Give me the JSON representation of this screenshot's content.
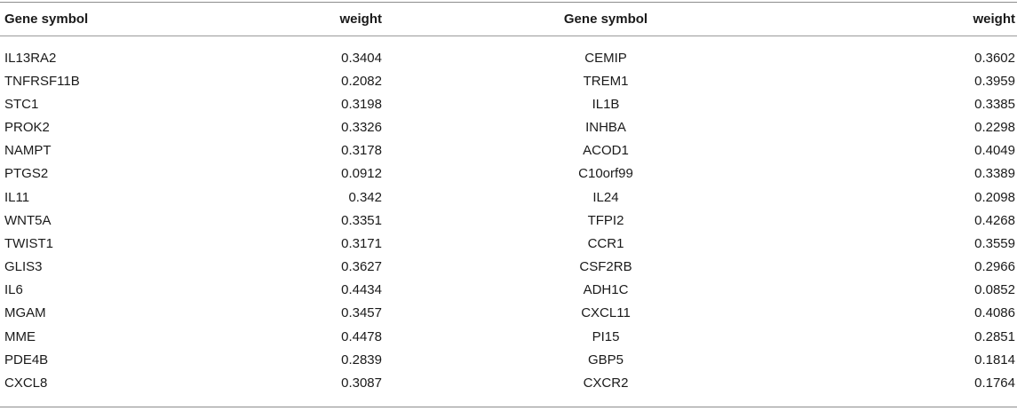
{
  "table": {
    "headers": [
      "Gene symbol",
      "weight",
      "Gene symbol",
      "weight"
    ],
    "rows": [
      [
        "IL13RA2",
        "0.3404",
        "CEMIP",
        "0.3602"
      ],
      [
        "TNFRSF11B",
        "0.2082",
        "TREM1",
        "0.3959"
      ],
      [
        "STC1",
        "0.3198",
        "IL1B",
        "0.3385"
      ],
      [
        "PROK2",
        "0.3326",
        "INHBA",
        "0.2298"
      ],
      [
        "NAMPT",
        "0.3178",
        "ACOD1",
        "0.4049"
      ],
      [
        "PTGS2",
        "0.0912",
        "C10orf99",
        "0.3389"
      ],
      [
        "IL11",
        "0.342",
        "IL24",
        "0.2098"
      ],
      [
        "WNT5A",
        "0.3351",
        "TFPI2",
        "0.4268"
      ],
      [
        "TWIST1",
        "0.3171",
        "CCR1",
        "0.3559"
      ],
      [
        "GLIS3",
        "0.3627",
        "CSF2RB",
        "0.2966"
      ],
      [
        "IL6",
        "0.4434",
        "ADH1C",
        "0.0852"
      ],
      [
        "MGAM",
        "0.3457",
        "CXCL11",
        "0.4086"
      ],
      [
        "MME",
        "0.4478",
        "PI15",
        "0.2851"
      ],
      [
        "PDE4B",
        "0.2839",
        "GBP5",
        "0.1814"
      ],
      [
        "CXCL8",
        "0.3087",
        "CXCR2",
        "0.1764"
      ]
    ]
  }
}
